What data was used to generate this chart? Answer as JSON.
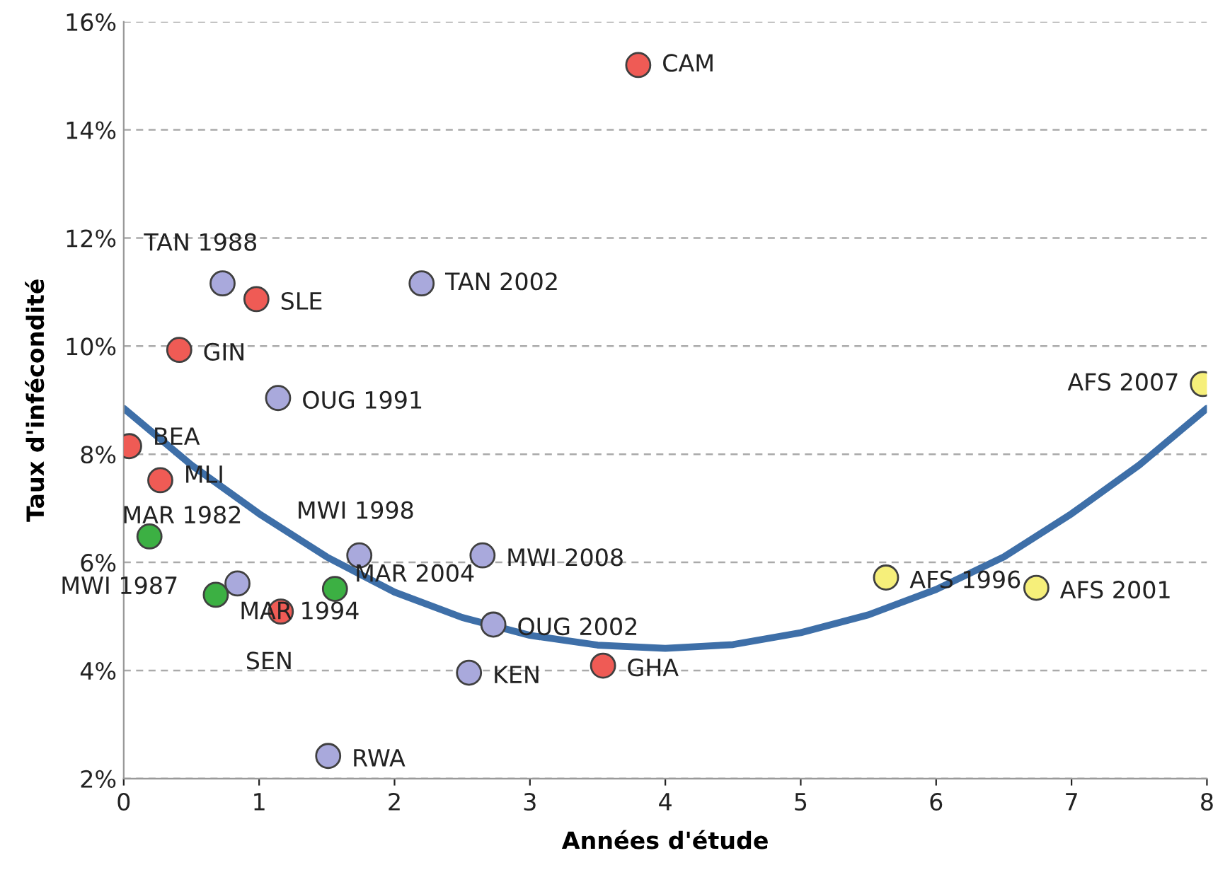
{
  "chart_data": {
    "type": "scatter",
    "xlabel": "Années d'étude",
    "ylabel": "Taux d'infécondité",
    "xlim": [
      0,
      8
    ],
    "xticks": [
      0,
      1,
      2,
      3,
      4,
      5,
      6,
      7,
      8
    ],
    "ylim": [
      2,
      16
    ],
    "yticks": [
      {
        "value": 2,
        "label": "2%"
      },
      {
        "value": 4,
        "label": "4%"
      },
      {
        "value": 6,
        "label": "6%"
      },
      {
        "value": 8,
        "label": "8%"
      },
      {
        "value": 10,
        "label": "10%"
      },
      {
        "value": 12,
        "label": "12%"
      },
      {
        "value": 14,
        "label": "14%"
      },
      {
        "value": 16,
        "label": "16%"
      }
    ],
    "grid": "y",
    "marker": "circle",
    "series": [
      {
        "x": [
          3.8,
          0.73,
          0.98,
          2.2,
          0.41,
          1.14,
          0.04,
          0.27,
          0.19,
          1.74,
          2.65,
          0.84,
          0.68,
          1.56,
          1.16,
          2.73,
          2.55,
          3.54,
          1.51,
          5.63,
          6.74,
          7.97
        ],
        "values": [
          15.2,
          11.16,
          10.87,
          11.16,
          9.93,
          9.04,
          8.15,
          7.52,
          6.48,
          6.13,
          6.13,
          5.61,
          5.4,
          5.51,
          5.09,
          4.85,
          3.96,
          4.09,
          2.42,
          5.72,
          5.53,
          9.3
        ],
        "colors": [
          "#ef5b55",
          "#a9a9dc",
          "#ef5b55",
          "#a9a9dc",
          "#ef5b55",
          "#a9a9dc",
          "#ef5b55",
          "#ef5b55",
          "#3cb043",
          "#a9a9dc",
          "#a9a9dc",
          "#a9a9dc",
          "#3cb043",
          "#3cb043",
          "#ef5b55",
          "#a9a9dc",
          "#a9a9dc",
          "#ef5b55",
          "#a9a9dc",
          "#f6ef7a",
          "#f6ef7a",
          "#f6ef7a"
        ]
      },
      {
        "type": "line",
        "color": "#3e6fa8",
        "line_style": "solid",
        "marker": "none",
        "x": [
          0,
          0.5,
          1,
          1.5,
          2,
          2.5,
          3,
          3.5,
          4,
          4.5,
          5,
          5.5,
          6,
          6.5,
          7,
          7.5,
          8
        ],
        "values": [
          8.85,
          7.8,
          6.9,
          6.1,
          5.45,
          4.98,
          4.65,
          4.47,
          4.41,
          4.48,
          4.7,
          5.03,
          5.5,
          6.1,
          6.9,
          7.8,
          8.85
        ]
      }
    ],
    "annotations": [
      {
        "text": "CAM",
        "x": 3.8,
        "y": 15.2
      },
      {
        "text": "TAN 1988",
        "x": 0.73,
        "y": 11.16
      },
      {
        "text": "SLE",
        "x": 0.98,
        "y": 10.87
      },
      {
        "text": "TAN 2002",
        "x": 2.2,
        "y": 11.16
      },
      {
        "text": "GIN",
        "x": 0.41,
        "y": 9.93
      },
      {
        "text": "OUG 1991",
        "x": 1.14,
        "y": 9.04
      },
      {
        "text": "BEA",
        "x": 0.04,
        "y": 8.15
      },
      {
        "text": "MLI",
        "x": 0.27,
        "y": 7.52
      },
      {
        "text": "MAR 1982",
        "x": 0.19,
        "y": 6.48
      },
      {
        "text": "MWI 1998",
        "x": 1.74,
        "y": 6.13
      },
      {
        "text": "MWI 2008",
        "x": 2.65,
        "y": 6.13
      },
      {
        "text": "MWI 1987",
        "x": 0.84,
        "y": 5.61
      },
      {
        "text": "MAR 1994",
        "x": 0.68,
        "y": 5.4
      },
      {
        "text": "MAR 2004",
        "x": 1.56,
        "y": 5.51
      },
      {
        "text": "SEN",
        "x": 1.16,
        "y": 5.09
      },
      {
        "text": "OUG 2002",
        "x": 2.73,
        "y": 4.85
      },
      {
        "text": "KEN",
        "x": 2.55,
        "y": 3.96
      },
      {
        "text": "GHA",
        "x": 3.54,
        "y": 4.09
      },
      {
        "text": "RWA",
        "x": 1.51,
        "y": 2.42
      },
      {
        "text": "AFS 1996",
        "x": 5.63,
        "y": 5.72
      },
      {
        "text": "AFS 2001",
        "x": 6.74,
        "y": 5.53
      },
      {
        "text": "AFS 2007",
        "x": 7.97,
        "y": 9.3
      }
    ]
  }
}
